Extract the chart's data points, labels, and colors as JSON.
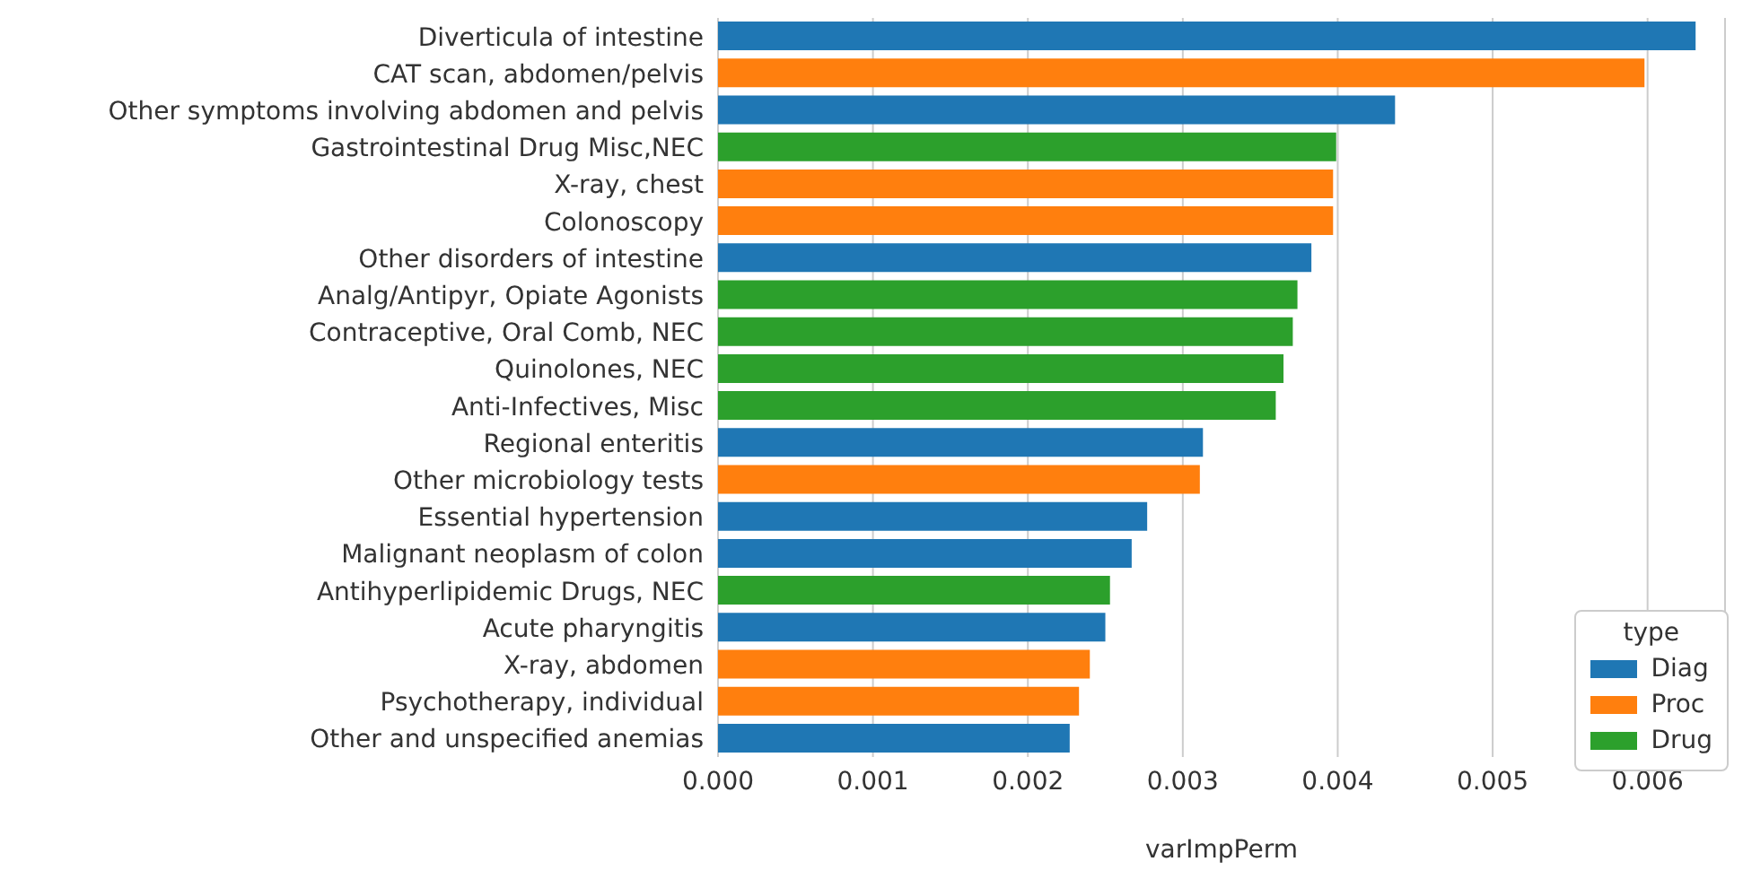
{
  "chart_data": {
    "type": "bar",
    "orientation": "horizontal",
    "stacked": true,
    "xlabel": "varImpPerm",
    "legend_title": "type",
    "legend": "bottom right",
    "grid": "x",
    "categories": [
      "Diverticula of intestine",
      "CAT scan, abdomen/pelvis",
      "Other symptoms involving abdomen and pelvis",
      "Gastrointestinal Drug Misc,NEC",
      "X-ray, chest",
      "Colonoscopy",
      "Other disorders of intestine",
      "Analg/Antipyr, Opiate Agonists",
      "Contraceptive, Oral Comb, NEC",
      "Quinolones, NEC",
      "Anti-Infectives, Misc",
      "Regional enteritis",
      "Other microbiology tests",
      "Essential hypertension",
      "Malignant neoplasm of colon",
      "Antihyperlipidemic Drugs, NEC",
      "Acute pharyngitis",
      "X-ray, abdomen",
      "Psychotherapy, individual",
      "Other and unspecified anemias"
    ],
    "series": [
      {
        "name": "Diag",
        "color": "#1f77b4",
        "values": [
          0.00631,
          null,
          0.00437,
          null,
          null,
          null,
          0.00383,
          null,
          null,
          null,
          null,
          0.00313,
          null,
          0.00277,
          0.00267,
          null,
          0.0025,
          null,
          null,
          0.00227
        ]
      },
      {
        "name": "Proc",
        "color": "#ff7f0e",
        "values": [
          null,
          0.00598,
          null,
          null,
          0.00397,
          0.00397,
          null,
          null,
          null,
          null,
          null,
          null,
          0.00311,
          null,
          null,
          null,
          null,
          0.0024,
          0.00233,
          null
        ]
      },
      {
        "name": "Drug",
        "color": "#2ca02c",
        "values": [
          null,
          null,
          null,
          0.00399,
          null,
          null,
          null,
          0.00374,
          0.00371,
          0.00365,
          0.0036,
          null,
          null,
          null,
          null,
          0.00253,
          null,
          null,
          null,
          null
        ]
      }
    ],
    "xlim": [
      0,
      0.0065
    ],
    "xticks": [
      {
        "value": 0,
        "label": "0.000"
      },
      {
        "value": 0.001,
        "label": "0.001"
      },
      {
        "value": 0.002,
        "label": "0.002"
      },
      {
        "value": 0.003,
        "label": "0.003"
      },
      {
        "value": 0.004,
        "label": "0.004"
      },
      {
        "value": 0.005,
        "label": "0.005"
      },
      {
        "value": 0.006,
        "label": "0.006"
      }
    ]
  }
}
